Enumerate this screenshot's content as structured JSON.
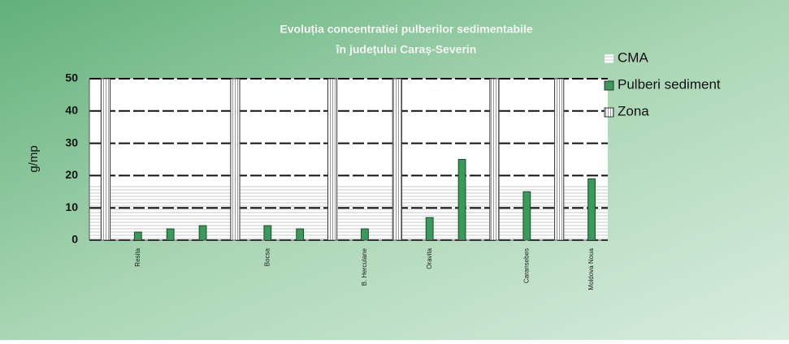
{
  "chart_data": {
    "type": "bar",
    "title": "Evoluția concentratiei  pulberilor sedimentabile",
    "subtitle": "în județului Caraș-Severin",
    "y_label": "g/mp",
    "categories": [
      null,
      "Resita",
      null,
      null,
      null,
      "Bocsa",
      null,
      null,
      "B. Herculane",
      null,
      "Oravita",
      null,
      null,
      "Caransebes",
      null,
      "Moldova Noua"
    ],
    "series": [
      {
        "name": "CMA",
        "color": "#ffffff",
        "values": [
          17,
          17,
          17,
          17,
          17,
          17,
          17,
          17,
          17,
          17,
          17,
          17,
          17,
          17,
          17,
          17
        ]
      },
      {
        "name": "Pulberi sediment",
        "color": "#3a9a5c",
        "values": [
          null,
          2.5,
          3.5,
          4.5,
          null,
          4.5,
          3.5,
          null,
          3.5,
          null,
          7,
          25,
          null,
          15,
          null,
          19
        ]
      },
      {
        "name": "Zona",
        "color": "#d8d8d8",
        "values": [
          50,
          null,
          null,
          null,
          50,
          null,
          null,
          50,
          null,
          50,
          null,
          null,
          50,
          null,
          50,
          null
        ]
      }
    ],
    "ylim": [
      0,
      50
    ],
    "yticks": [
      0,
      10,
      20,
      30,
      40,
      50
    ],
    "grid": true,
    "legend": "right"
  }
}
